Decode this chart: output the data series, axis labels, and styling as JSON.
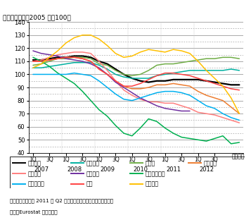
{
  "title": "（季調済指数、2005 年＝100）",
  "xlabel": "（年月）",
  "ylim": [
    40,
    140
  ],
  "yticks": [
    40,
    50,
    60,
    70,
    80,
    90,
    100,
    110,
    120,
    130,
    140
  ],
  "note1": "備考：ギリシャは 2011 年 Q2 以降、季節調整後の数値が未公表。",
  "note2": "資料：Eurostat から作成。",
  "series": {
    "ユーロ圈": {
      "color": "#000000",
      "linewidth": 1.6,
      "data": [
        111,
        111,
        112,
        113,
        113,
        114,
        114,
        113,
        110,
        108,
        104,
        100,
        97,
        95,
        94,
        95,
        95,
        96,
        96,
        96,
        96,
        95,
        94,
        93,
        92,
        92
      ]
    },
    "フランス": {
      "color": "#00b0a0",
      "linewidth": 1.1,
      "data": [
        105,
        105,
        106,
        107,
        108,
        109,
        109,
        109,
        107,
        104,
        100,
        98,
        97,
        97,
        97,
        99,
        100,
        101,
        102,
        103,
        103,
        103,
        103,
        103,
        104,
        103
      ]
    },
    "ドイツ": {
      "color": "#70ad47",
      "linewidth": 1.1,
      "data": [
        107,
        108,
        110,
        112,
        112,
        113,
        113,
        112,
        108,
        107,
        103,
        100,
        99,
        100,
        103,
        107,
        108,
        108,
        109,
        110,
        111,
        112,
        112,
        113,
        113,
        112
      ]
    },
    "イタリア": {
      "color": "#ed7d31",
      "linewidth": 1.1,
      "data": [
        110,
        110,
        111,
        112,
        113,
        113,
        112,
        110,
        104,
        100,
        95,
        91,
        89,
        89,
        90,
        92,
        92,
        93,
        92,
        91,
        87,
        84,
        82,
        80,
        75,
        70
      ]
    },
    "スペイン": {
      "color": "#ff7f7f",
      "linewidth": 1.1,
      "data": [
        110,
        111,
        113,
        115,
        116,
        117,
        117,
        116,
        110,
        103,
        95,
        88,
        84,
        81,
        79,
        79,
        78,
        78,
        76,
        74,
        71,
        70,
        69,
        67,
        65,
        63
      ]
    },
    "ギリシャ": {
      "color": "#7030a0",
      "linewidth": 1.1,
      "data": [
        118,
        116,
        115,
        114,
        112,
        111,
        110,
        108,
        105,
        100,
        94,
        90,
        86,
        82,
        79,
        76,
        74,
        73,
        72,
        72,
        null,
        null,
        null,
        null,
        null,
        null
      ]
    },
    "アイルランド": {
      "color": "#00b050",
      "linewidth": 1.1,
      "data": [
        113,
        110,
        106,
        101,
        97,
        93,
        87,
        80,
        73,
        68,
        61,
        55,
        53,
        59,
        66,
        64,
        59,
        55,
        52,
        51,
        50,
        49,
        51,
        53,
        47,
        48
      ]
    },
    "ポルトガル": {
      "color": "#00b0f0",
      "linewidth": 1.1,
      "data": [
        100,
        100,
        100,
        100,
        100,
        101,
        100,
        99,
        95,
        90,
        85,
        81,
        80,
        82,
        84,
        86,
        87,
        87,
        86,
        84,
        80,
        76,
        74,
        70,
        67,
        65
      ]
    },
    "英国": {
      "color": "#ff4040",
      "linewidth": 1.1,
      "data": [
        110,
        110,
        111,
        112,
        113,
        113,
        112,
        110,
        104,
        100,
        95,
        91,
        91,
        93,
        96,
        99,
        101,
        101,
        100,
        99,
        97,
        95,
        93,
        91,
        89,
        88
      ]
    },
    "キプロス": {
      "color": "#ffc000",
      "linewidth": 1.1,
      "data": [
        105,
        108,
        113,
        118,
        124,
        128,
        130,
        130,
        127,
        122,
        116,
        113,
        114,
        117,
        119,
        118,
        117,
        119,
        118,
        116,
        110,
        103,
        97,
        91,
        82,
        70
      ]
    }
  },
  "legend_order": [
    "ユーロ圈",
    "フランス",
    "ドイツ",
    "イタリア",
    "スペイン",
    "ギリシャ",
    "アイルランド",
    "ポルトガル",
    "英国",
    "キプロス"
  ],
  "x_years": [
    "2007",
    "2008",
    "2009",
    "2010",
    "2011",
    "2012"
  ]
}
